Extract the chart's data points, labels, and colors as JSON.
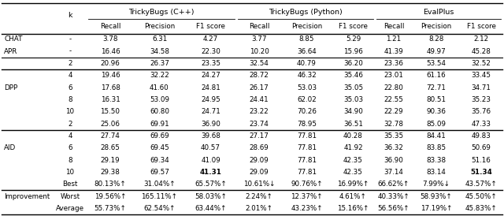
{
  "group_headers": [
    "TrickyBugs (C++)",
    "TrickyBugs (Python)",
    "EvalPlus"
  ],
  "sub_headers": [
    "Recall",
    "Precision",
    "F1 score"
  ],
  "rows": [
    {
      "group": "CHAT",
      "k": "-",
      "vals": [
        "3.78",
        "6.31",
        "4.27",
        "3.77",
        "8.85",
        "5.29",
        "1.21",
        "8.28",
        "2.12"
      ],
      "bold": []
    },
    {
      "group": "APR",
      "k": "-",
      "vals": [
        "16.46",
        "34.58",
        "22.30",
        "10.20",
        "36.64",
        "15.96",
        "41.39",
        "49.97",
        "45.28"
      ],
      "bold": []
    },
    {
      "group": "DPP",
      "k": "2",
      "vals": [
        "20.96",
        "26.37",
        "23.35",
        "32.54",
        "40.79",
        "36.20",
        "23.36",
        "53.54",
        "32.52"
      ],
      "bold": []
    },
    {
      "group": "DPP",
      "k": "4",
      "vals": [
        "19.46",
        "32.22",
        "24.27",
        "28.72",
        "46.32",
        "35.46",
        "23.01",
        "61.16",
        "33.45"
      ],
      "bold": []
    },
    {
      "group": "DPP",
      "k": "6",
      "vals": [
        "17.68",
        "41.60",
        "24.81",
        "26.17",
        "53.03",
        "35.05",
        "22.80",
        "72.71",
        "34.71"
      ],
      "bold": []
    },
    {
      "group": "DPP",
      "k": "8",
      "vals": [
        "16.31",
        "53.09",
        "24.95",
        "24.41",
        "62.02",
        "35.03",
        "22.55",
        "80.51",
        "35.23"
      ],
      "bold": []
    },
    {
      "group": "DPP",
      "k": "10",
      "vals": [
        "15.50",
        "60.80",
        "24.71",
        "23.22",
        "70.26",
        "34.90",
        "22.29",
        "90.36",
        "35.76"
      ],
      "bold": []
    },
    {
      "group": "AID",
      "k": "2",
      "vals": [
        "25.06",
        "69.91",
        "36.90",
        "23.74",
        "78.95",
        "36.51",
        "32.78",
        "85.09",
        "47.33"
      ],
      "bold": []
    },
    {
      "group": "AID",
      "k": "4",
      "vals": [
        "27.74",
        "69.69",
        "39.68",
        "27.17",
        "77.81",
        "40.28",
        "35.35",
        "84.41",
        "49.83"
      ],
      "bold": []
    },
    {
      "group": "AID",
      "k": "6",
      "vals": [
        "28.65",
        "69.45",
        "40.57",
        "28.69",
        "77.81",
        "41.92",
        "36.32",
        "83.85",
        "50.69"
      ],
      "bold": []
    },
    {
      "group": "AID",
      "k": "8",
      "vals": [
        "29.19",
        "69.34",
        "41.09",
        "29.09",
        "77.81",
        "42.35",
        "36.90",
        "83.38",
        "51.16"
      ],
      "bold": []
    },
    {
      "group": "AID",
      "k": "10",
      "vals": [
        "29.38",
        "69.57",
        "41.31",
        "29.09",
        "77.81",
        "42.35",
        "37.14",
        "83.14",
        "51.34"
      ],
      "bold": [
        2,
        8
      ]
    },
    {
      "group": "Improvement",
      "k": "Best",
      "vals": [
        "80.13%↑",
        "31.04%↑",
        "65.57%↑",
        "10.61%↓",
        "90.76%↑",
        "16.99%↑",
        "66.62%↑",
        "7.99%↓",
        "43.57%↑"
      ],
      "bold": []
    },
    {
      "group": "Improvement",
      "k": "Worst",
      "vals": [
        "19.56%↑",
        "165.11%↑",
        "58.03%↑",
        "2.24%↑",
        "12.37%↑",
        "4.61%↑",
        "40.33%↑",
        "58.93%↑",
        "45.50%↑"
      ],
      "bold": []
    },
    {
      "group": "Improvement",
      "k": "Average",
      "vals": [
        "55.73%↑",
        "62.54%↑",
        "63.44%↑",
        "2.01%↑",
        "43.23%↑",
        "15.16%↑",
        "56.56%↑",
        "17.19%↑",
        "45.83%↑"
      ],
      "bold": []
    }
  ],
  "thick_seps_after_rows": [
    1,
    2,
    7,
    12
  ],
  "background_color": "#ffffff",
  "font_size": 6.3
}
